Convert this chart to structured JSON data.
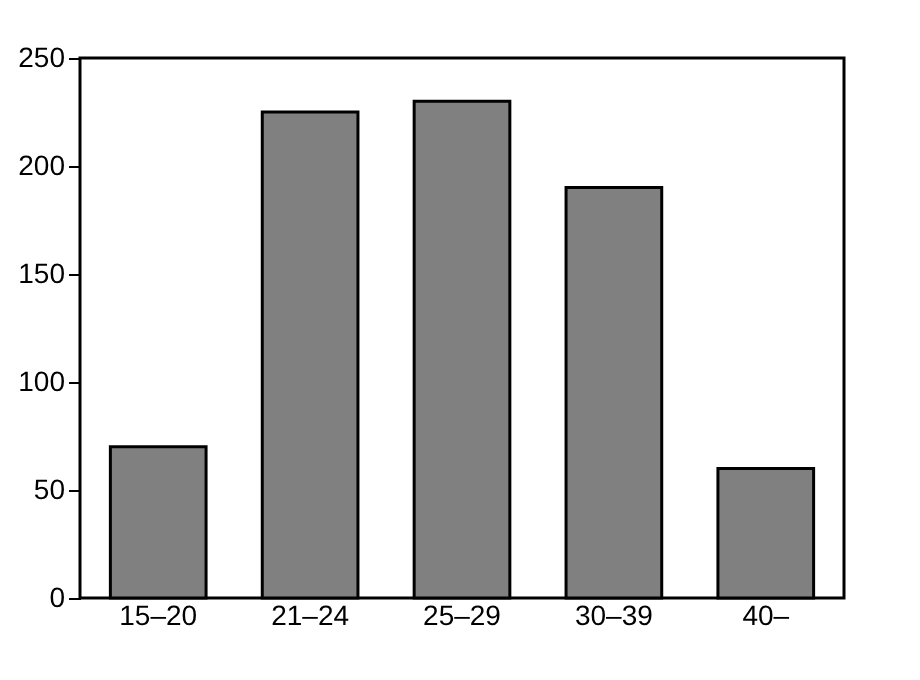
{
  "chart_data": {
    "type": "bar",
    "categories": [
      "15–20",
      "21–24",
      "25–29",
      "30–39",
      "40–"
    ],
    "values": [
      70,
      225,
      230,
      190,
      60
    ],
    "color": "#808080",
    "ylim": [
      0,
      250
    ],
    "yticks": [
      0,
      50,
      100,
      150,
      200,
      250
    ],
    "grid": false
  }
}
